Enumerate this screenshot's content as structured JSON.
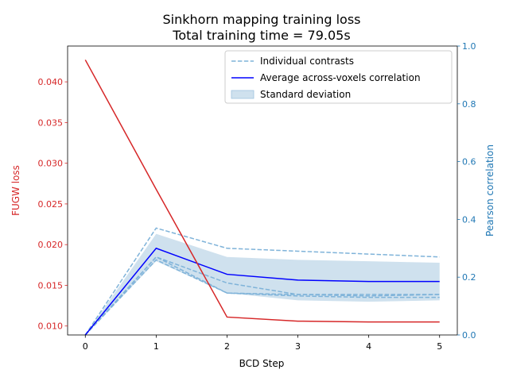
{
  "chart_data": {
    "type": "line",
    "title": "Sinkhorn mapping training loss",
    "subtitle": "Total training time = 79.05s",
    "xlabel": "BCD Step",
    "x": [
      0,
      1,
      2,
      3,
      4,
      5
    ],
    "xlim": [
      -0.25,
      5.25
    ],
    "xticks": [
      "0",
      "1",
      "2",
      "3",
      "4",
      "5"
    ],
    "left_axis": {
      "label": "FUGW loss",
      "color": "#d62728",
      "ylim": [
        0.0089,
        0.0444
      ],
      "ticks": [
        0.01,
        0.015,
        0.02,
        0.025,
        0.03,
        0.035,
        0.04
      ],
      "tick_labels": [
        "0.010",
        "0.015",
        "0.020",
        "0.025",
        "0.030",
        "0.035",
        "0.040"
      ]
    },
    "right_axis": {
      "label": "Pearson correlation",
      "color": "#1f77b4",
      "ylim": [
        0.0,
        1.0
      ],
      "ticks": [
        0.0,
        0.2,
        0.4,
        0.6,
        0.8,
        1.0
      ],
      "tick_labels": [
        "0.0",
        "0.2",
        "0.4",
        "0.6",
        "0.8",
        "1.0"
      ]
    },
    "loss": [
      0.0427,
      0.0268,
      0.0111,
      0.0106,
      0.0105,
      0.0105
    ],
    "contrasts": [
      [
        0.0,
        0.37,
        0.3,
        0.29,
        0.28,
        0.27
      ],
      [
        0.0,
        0.27,
        0.18,
        0.14,
        0.135,
        0.14
      ],
      [
        0.0,
        0.27,
        0.145,
        0.135,
        0.13,
        0.13
      ],
      [
        0.0,
        0.26,
        0.145,
        0.14,
        0.14,
        0.14
      ]
    ],
    "average": [
      0.0,
      0.3,
      0.21,
      0.19,
      0.185,
      0.185
    ],
    "std_upper": [
      0.0,
      0.35,
      0.27,
      0.26,
      0.255,
      0.25
    ],
    "std_lower": [
      0.0,
      0.255,
      0.145,
      0.12,
      0.115,
      0.12
    ],
    "legend": {
      "position": "upper right",
      "items": [
        "Individual contrasts",
        "Average across-voxels correlation",
        "Standard deviation"
      ]
    },
    "colors": {
      "loss": "#d62728",
      "contrasts": "#7fb3d9",
      "average": "#0000ff",
      "std_fill": "#cfe1ee"
    }
  }
}
